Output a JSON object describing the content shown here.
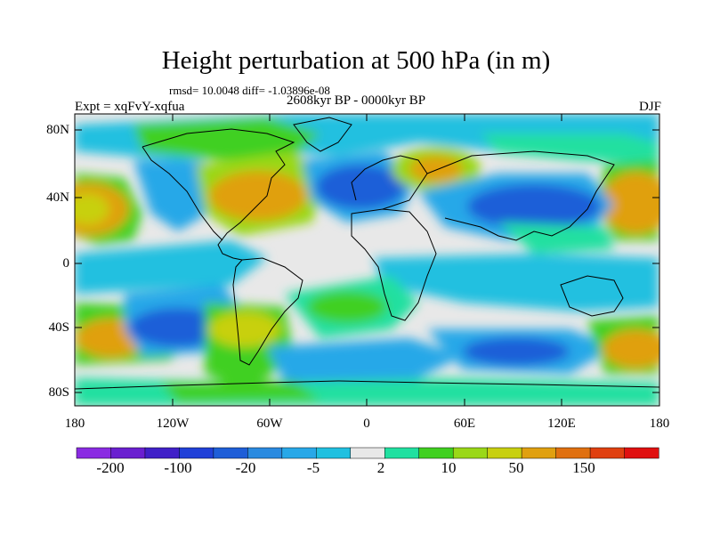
{
  "figure": {
    "title": "Height perturbation at 500 hPa (in m)",
    "stats": "rmsd= 10.0048  diff= -1.03896e-08",
    "experiment": "Expt = xqFvY-xqfua",
    "period": "2608kyr BP - 0000kyr BP",
    "season": "DJF"
  },
  "axes": {
    "lat_labels": [
      "80N",
      "40N",
      "0",
      "40S",
      "80S"
    ],
    "lon_labels": [
      "180",
      "120W",
      "60W",
      "0",
      "60E",
      "120E",
      "180"
    ]
  },
  "colorbar": {
    "colors": [
      "#8a2be2",
      "#6a1fd0",
      "#4020c8",
      "#2040d8",
      "#1e5ed8",
      "#2a8ae0",
      "#28a8e8",
      "#20c0e0",
      "#e8e8e8",
      "#20e0a0",
      "#40d020",
      "#9ad818",
      "#c8d010",
      "#e0a010",
      "#e07010",
      "#e04010",
      "#e01010"
    ],
    "labels": [
      "-200",
      "-100",
      "-20",
      "-5",
      "2",
      "10",
      "50",
      "150"
    ]
  },
  "palette": {
    "ocean_background": "#e8e8e8",
    "coast": "#000000"
  }
}
